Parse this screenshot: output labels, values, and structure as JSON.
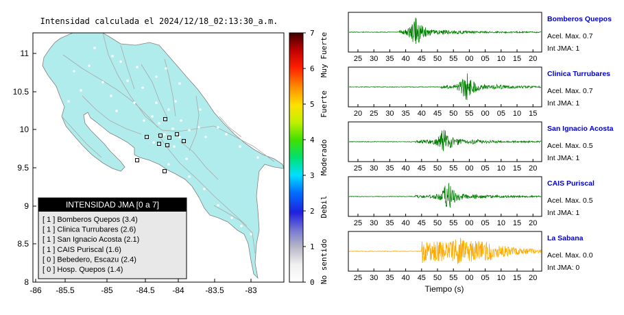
{
  "map": {
    "title": "Intensidad calculada el 2024/12/18_02:13:30_a.m.",
    "x_ticks": [
      "-86",
      "-85.5",
      "-85",
      "-84.5",
      "-84",
      "-83.5",
      "-83"
    ],
    "y_ticks": [
      "11",
      "10.5",
      "10",
      "9.5",
      "9",
      "8.5",
      "8"
    ],
    "legend_title": "INTENSIDAD JMA [0 a 7]",
    "legend_items": [
      "[ 1 ]  Bomberos Quepos (3.4)",
      "[ 1 ]  Clinica Turrubares (2.6)",
      "[ 1 ]  San Ignacio Acosta (2.1)",
      "[ 1 ]  CAIS Puriscal (1.6)",
      "[ 0 ]  Bebedero, Escazu (2.4)",
      "[ 0 ]  Hosp. Quepos (1.4)"
    ],
    "land_color": "#b0ecec",
    "station_color": "#000000"
  },
  "colorbar": {
    "ticks": [
      "0",
      "1",
      "2",
      "3",
      "4",
      "5",
      "6",
      "7"
    ],
    "labels": [
      "No sentido",
      "Debil",
      "Moderado",
      "Fuerte",
      "Muy Fuerte"
    ]
  },
  "chart_data": {
    "type": "line",
    "xlabel": "Tiempo (s)",
    "panels": [
      {
        "name": "Bomberos Quepos",
        "acel": "Acel. Max. 0.7",
        "jma": "Int JMA: 1",
        "color": "#008000",
        "x_ticks": [
          "25",
          "30",
          "35",
          "40",
          "45",
          "50",
          "55",
          "00",
          "05",
          "10",
          "15",
          "20"
        ],
        "onset_s": 38,
        "peak_s": 43
      },
      {
        "name": "Clinica Turrubares",
        "acel": "Acel. Max. 0.7",
        "jma": "Int JMA: 1",
        "color": "#008000",
        "x_ticks": [
          "20",
          "25",
          "30",
          "35",
          "40",
          "45",
          "50",
          "55",
          "00",
          "05",
          "10",
          "15"
        ],
        "onset_s": 46,
        "peak_s": 54
      },
      {
        "name": "San Ignacio Acosta",
        "acel": "Acel. Max. 0.5",
        "jma": "Int JMA: 1",
        "color": "#008000",
        "x_ticks": [
          "25",
          "30",
          "35",
          "40",
          "45",
          "50",
          "55",
          "00",
          "05",
          "10",
          "15",
          "20"
        ],
        "onset_s": 43,
        "peak_s": 52
      },
      {
        "name": "CAIS Puriscal",
        "acel": "Acel. Max. 0.5",
        "jma": "Int JMA: 1",
        "color": "#008000",
        "x_ticks": [
          "25",
          "30",
          "35",
          "40",
          "45",
          "50",
          "55",
          "00",
          "05",
          "10",
          "15",
          "20"
        ],
        "onset_s": 43,
        "peak_s": 53
      },
      {
        "name": "La Sabana",
        "acel": "Acel. Max. 0.0",
        "jma": "Int JMA: 0",
        "color": "#ffaa00",
        "x_ticks": [
          "25",
          "30",
          "35",
          "40",
          "45",
          "50",
          "55",
          "00",
          "05",
          "10",
          "15",
          "20"
        ],
        "onset_s": 45,
        "peak_s": 57
      }
    ]
  }
}
